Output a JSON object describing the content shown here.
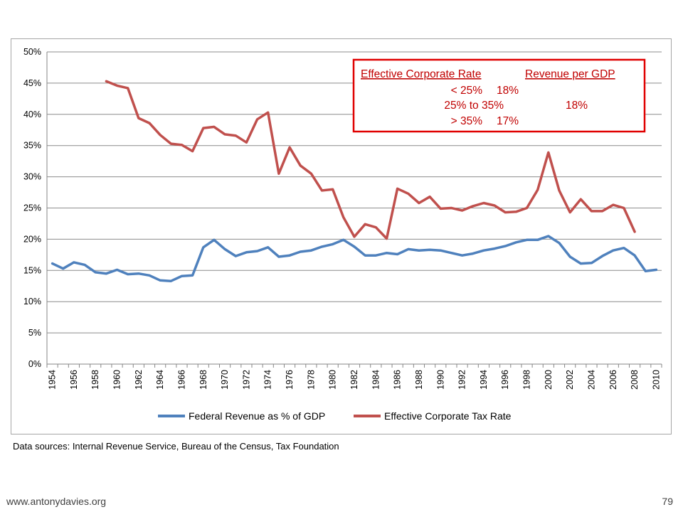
{
  "chart_data": {
    "type": "line",
    "title": "",
    "xlabel": "",
    "ylabel": "",
    "ylim": [
      0,
      0.5
    ],
    "y_ticks": [
      0,
      0.05,
      0.1,
      0.15,
      0.2,
      0.25,
      0.3,
      0.35,
      0.4,
      0.45,
      0.5
    ],
    "y_tick_labels": [
      "0%",
      "5%",
      "10%",
      "15%",
      "20%",
      "25%",
      "30%",
      "35%",
      "40%",
      "45%",
      "50%"
    ],
    "x_tick_labels": [
      "1954",
      "1956",
      "1958",
      "1960",
      "1962",
      "1964",
      "1966",
      "1968",
      "1970",
      "1972",
      "1974",
      "1976",
      "1978",
      "1980",
      "1982",
      "1984",
      "1986",
      "1988",
      "1990",
      "1992",
      "1994",
      "1996",
      "1998",
      "2000",
      "2002",
      "2004",
      "2006",
      "2008",
      "2010"
    ],
    "grid": "horizontal",
    "legend_position": "bottom",
    "x": [
      1954,
      1955,
      1956,
      1957,
      1958,
      1959,
      1960,
      1961,
      1962,
      1963,
      1964,
      1965,
      1966,
      1967,
      1968,
      1969,
      1970,
      1971,
      1972,
      1973,
      1974,
      1975,
      1976,
      1977,
      1978,
      1979,
      1980,
      1981,
      1982,
      1983,
      1984,
      1985,
      1986,
      1987,
      1988,
      1989,
      1990,
      1991,
      1992,
      1993,
      1994,
      1995,
      1996,
      1997,
      1998,
      1999,
      2000,
      2001,
      2002,
      2003,
      2004,
      2005,
      2006,
      2007,
      2008,
      2009,
      2010
    ],
    "series": [
      {
        "name": "Federal Revenue as % of GDP",
        "color": "#4f81bd",
        "values": [
          0.161,
          0.153,
          0.163,
          0.159,
          0.147,
          0.145,
          0.151,
          0.144,
          0.145,
          0.142,
          0.134,
          0.133,
          0.141,
          0.142,
          0.187,
          0.199,
          0.184,
          0.173,
          0.179,
          0.181,
          0.187,
          0.172,
          0.174,
          0.18,
          0.182,
          0.188,
          0.192,
          0.199,
          0.188,
          0.174,
          0.174,
          0.178,
          0.176,
          0.184,
          0.182,
          0.183,
          0.182,
          0.178,
          0.174,
          0.177,
          0.182,
          0.185,
          0.189,
          0.195,
          0.199,
          0.199,
          0.205,
          0.194,
          0.172,
          0.161,
          0.162,
          0.173,
          0.182,
          0.186,
          0.174,
          0.149,
          0.151
        ]
      },
      {
        "name": "Effective Corporate Tax Rate",
        "color": "#c0504d",
        "values": [
          null,
          null,
          null,
          null,
          null,
          0.453,
          0.446,
          0.442,
          0.394,
          0.386,
          0.367,
          0.353,
          0.351,
          0.341,
          0.378,
          0.38,
          0.368,
          0.366,
          0.355,
          0.392,
          0.403,
          0.305,
          0.347,
          0.318,
          0.305,
          0.278,
          0.28,
          0.235,
          0.204,
          0.224,
          0.219,
          0.201,
          0.281,
          0.273,
          0.258,
          0.268,
          0.249,
          0.25,
          0.246,
          0.253,
          0.258,
          0.254,
          0.243,
          0.244,
          0.25,
          0.279,
          0.339,
          0.278,
          0.243,
          0.264,
          0.245,
          0.245,
          0.255,
          0.25,
          0.212,
          null,
          null
        ]
      }
    ]
  },
  "legend": {
    "series_1": "Federal Revenue as % of GDP",
    "series_2": "Effective Corporate Tax Rate"
  },
  "summary_box": {
    "header_rate": "Effective Corporate Rate",
    "header_revenue": "Revenue per GDP",
    "rows": [
      {
        "rate": "< 25%",
        "revenue": "18%"
      },
      {
        "rate": "25% to 35%",
        "revenue": "18%"
      },
      {
        "rate": "> 35%",
        "revenue": "17%"
      }
    ],
    "color": "#c00000"
  },
  "source_note": "Data sources: Internal Revenue Service, Bureau of the Census, Tax Foundation",
  "footer": {
    "url": "www.antonydavies.org",
    "page_number": "79"
  }
}
